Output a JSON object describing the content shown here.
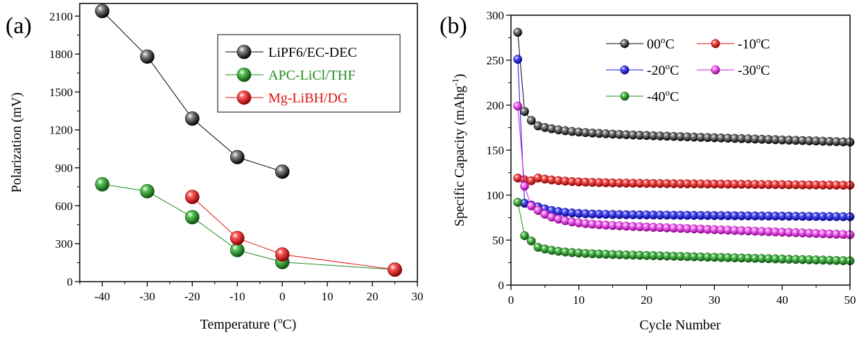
{
  "chart_data": [
    {
      "panel_label": "(a)",
      "type": "scatter",
      "xlabel_main": "Temperature (",
      "xlabel_sup": "o",
      "xlabel_tail": "C)",
      "ylabel": "Polarization (mV)",
      "xlim": [
        -45,
        30
      ],
      "ylim": [
        0,
        2200
      ],
      "xticks": [
        -40,
        -30,
        -20,
        -10,
        0,
        10,
        20,
        30
      ],
      "yticks": [
        0,
        300,
        600,
        900,
        1200,
        1500,
        1800,
        2100
      ],
      "grid": false,
      "legend_position": "top-right",
      "series": [
        {
          "name": "LiPF6/EC-DEC",
          "color": "#000000",
          "text_color": "#000000",
          "x": [
            -40,
            -30,
            -20,
            -10,
            0
          ],
          "y": [
            2140,
            1780,
            1290,
            985,
            870
          ]
        },
        {
          "name": "APC-LiCl/THF",
          "color": "#1e8c1e",
          "text_color": "#1e8c1e",
          "x": [
            -40,
            -30,
            -20,
            -10,
            0,
            25
          ],
          "y": [
            770,
            715,
            510,
            250,
            155,
            95
          ]
        },
        {
          "name": "Mg-LiBH/DG",
          "color": "#e01010",
          "text_color": "#e01010",
          "x": [
            -20,
            -10,
            0,
            25
          ],
          "y": [
            670,
            345,
            215,
            95
          ]
        }
      ]
    },
    {
      "panel_label": "(b)",
      "type": "scatter",
      "xlabel": "Cycle Number",
      "ylabel_main": "Specific Capacity (mAhg",
      "ylabel_sup": "-1",
      "ylabel_tail": ")",
      "xlim": [
        0,
        50
      ],
      "ylim": [
        0,
        300
      ],
      "xticks": [
        0,
        10,
        20,
        30,
        40,
        50
      ],
      "yticks": [
        0,
        50,
        100,
        150,
        200,
        250,
        300
      ],
      "grid": false,
      "legend_position": "top",
      "series": [
        {
          "name_main": "00",
          "name_tail": "C",
          "color": "#000000",
          "first": 281,
          "second": 193,
          "x3": 183,
          "plateau": 170,
          "final": 159,
          "drop": 7,
          "decay": 4
        },
        {
          "name_main": "-10",
          "name_tail": "C",
          "color": "#e01010",
          "first": 119,
          "second": 117,
          "x3": 116,
          "plateau": 114,
          "final": 111,
          "drop": 5,
          "decay": 4
        },
        {
          "name_main": "-20",
          "name_tail": "C",
          "color": "#1010e0",
          "first": 251,
          "second": 91,
          "x3": 89,
          "plateau": 79,
          "final": 76,
          "drop": 8,
          "decay": 3
        },
        {
          "name_main": "-30",
          "name_tail": "C",
          "color": "#e010e0",
          "first": 199,
          "second": 110,
          "x3": 88,
          "plateau": 69,
          "final": 56,
          "drop": 14,
          "decay": 3
        },
        {
          "name_main": "-40",
          "name_tail": "C",
          "color": "#1e8c1e",
          "first": 92,
          "second": 55,
          "x3": 49,
          "plateau": 36,
          "final": 27,
          "drop": 6,
          "decay": 3
        }
      ],
      "degree_sup": "o"
    }
  ]
}
